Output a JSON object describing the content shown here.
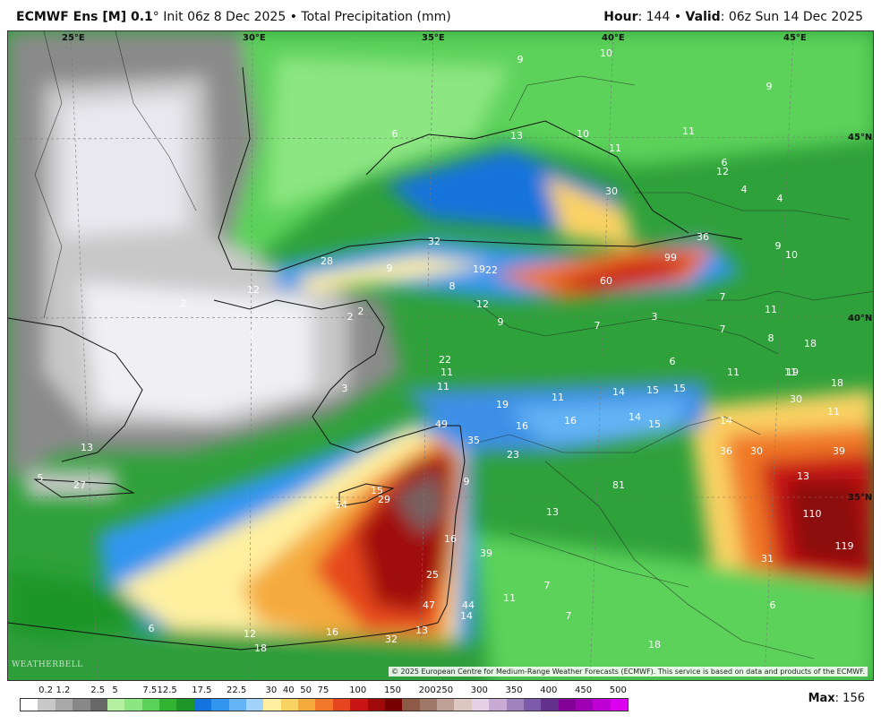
{
  "header": {
    "model": "ECMWF Ens [M] 0.1",
    "degree": "°",
    "init": "Init 06z 8 Dec 2025",
    "bullet": "•",
    "field": "Total Precipitation (mm)",
    "hour_label": "Hour",
    "hour_value": ": 144",
    "valid_label": "Valid",
    "valid_value": ": 06z Sun 14 Dec 2025"
  },
  "map": {
    "grid_labels": [
      "25°E",
      "30°E",
      "35°E",
      "40°E",
      "45°E",
      "45°N",
      "40°N",
      "35°N"
    ],
    "copyright": "© 2025 European Centre for Medium-Range Weather Forecasts (ECMWF). This service is based on data and products of the ECMWF.",
    "logo": "WEATHERBELL",
    "values": [
      "9",
      "10",
      "9",
      "6",
      "13",
      "10",
      "11",
      "11",
      "6",
      "4",
      "4",
      "9",
      "10",
      "30",
      "36",
      "99",
      "60",
      "32",
      "28",
      "9",
      "8",
      "19",
      "22",
      "12",
      "12",
      "2",
      "2",
      "2",
      "1",
      "9",
      "7",
      "3",
      "7",
      "3",
      "6",
      "7",
      "11",
      "8",
      "11",
      "11",
      "18",
      "19",
      "18",
      "30",
      "11",
      "14",
      "11",
      "15",
      "15",
      "14",
      "15",
      "16",
      "16",
      "19",
      "14",
      "36",
      "30",
      "39",
      "49",
      "35",
      "23",
      "13",
      "110",
      "119",
      "81",
      "13",
      "9",
      "31",
      "39",
      "11",
      "7",
      "7",
      "6",
      "18",
      "5",
      "27",
      "15",
      "29",
      "54",
      "16",
      "25",
      "47",
      "44",
      "14",
      "13",
      "32",
      "16",
      "12",
      "18",
      "6",
      "13",
      "22",
      "11",
      "11",
      "12"
    ]
  },
  "legend": {
    "labels": [
      "0.2",
      "1.2",
      "2.5",
      "5",
      "7.5",
      "12.5",
      "17.5",
      "22.5",
      "30",
      "40",
      "50",
      "75",
      "100",
      "150",
      "200",
      "250",
      "300",
      "350",
      "400",
      "450",
      "500"
    ],
    "colors": [
      "#ffffff",
      "#c8c8c8",
      "#a8a8a8",
      "#888888",
      "#686868",
      "#b4f0a0",
      "#8ce682",
      "#5ad25a",
      "#32b432",
      "#1e9628",
      "#1473dc",
      "#3296f0",
      "#64b4f5",
      "#a0d2fa",
      "#fff0a0",
      "#fad264",
      "#f5aa3c",
      "#f07828",
      "#e6461e",
      "#c81414",
      "#a00a0a",
      "#780000",
      "#8c5a46",
      "#a07868",
      "#bea096",
      "#dcc8c0",
      "#e6d2e6",
      "#c8aad2",
      "#a082be",
      "#7d5aaa",
      "#64328c",
      "#820096",
      "#a000b4",
      "#be00d2",
      "#dc00f0"
    ],
    "max_label": "Max",
    "max_value": ": 156"
  }
}
